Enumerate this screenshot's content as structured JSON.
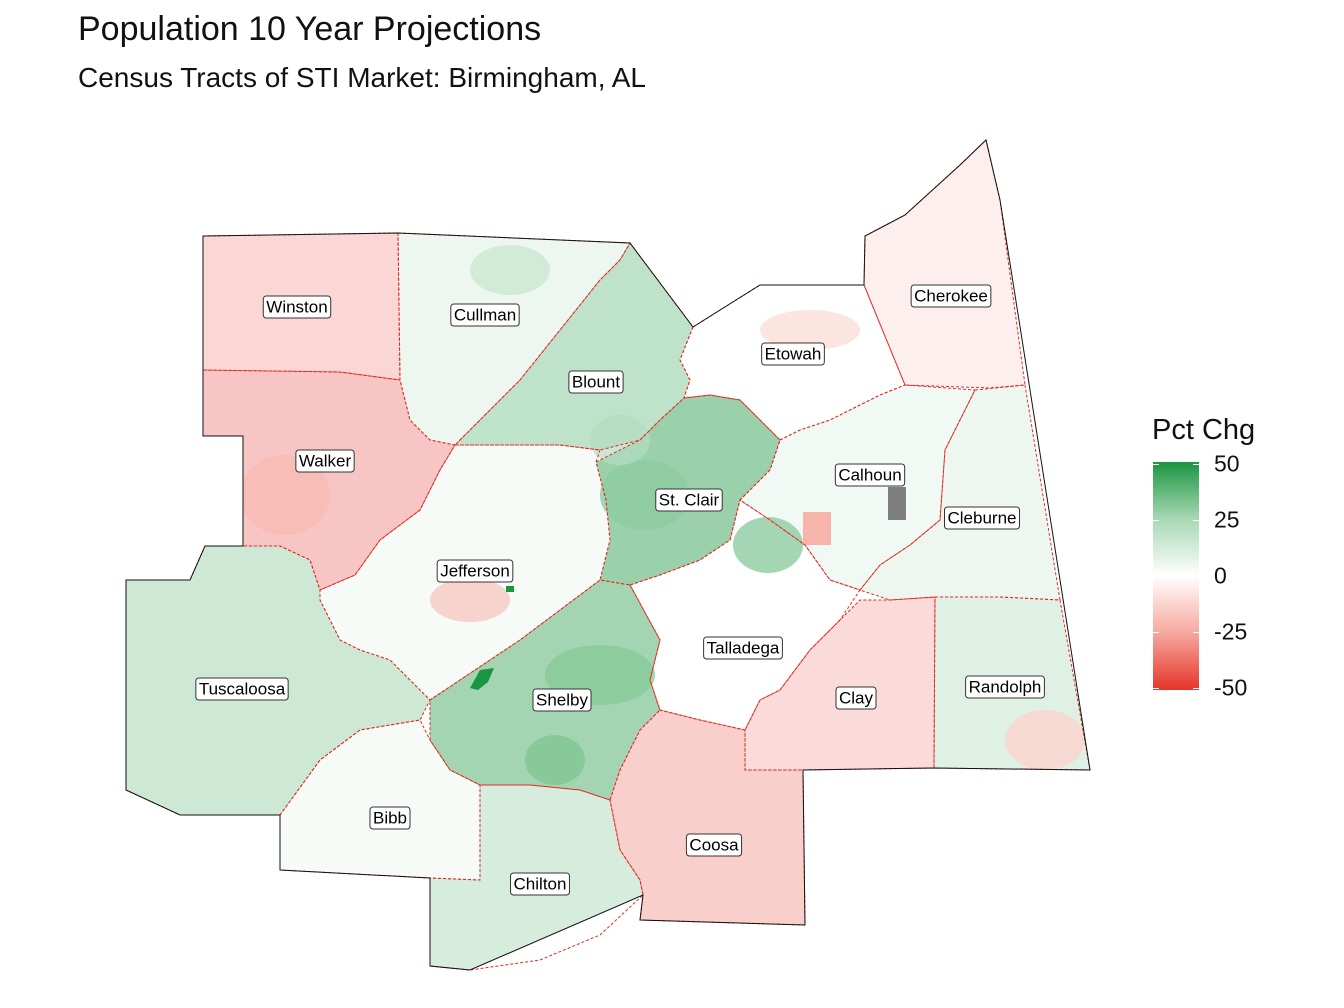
{
  "title": "Population 10 Year Projections",
  "subtitle": "Census Tracts of STI Market: Birmingham, AL",
  "legend": {
    "title": "Pct Chg",
    "ticks": [
      "50",
      "25",
      "0",
      "-25",
      "-50"
    ],
    "colors": {
      "high": "#1a9641",
      "mid": "#ffffff",
      "low": "#e4352b",
      "na": "#7f7f7f"
    }
  },
  "counties": [
    {
      "name": "Winston",
      "pct": -10
    },
    {
      "name": "Cullman",
      "pct": 4
    },
    {
      "name": "Blount",
      "pct": 14
    },
    {
      "name": "Etowah",
      "pct": 0
    },
    {
      "name": "Cherokee",
      "pct": -4
    },
    {
      "name": "Walker",
      "pct": -14
    },
    {
      "name": "St. Clair",
      "pct": 22
    },
    {
      "name": "Calhoun",
      "pct": 3
    },
    {
      "name": "Cleburne",
      "pct": 4
    },
    {
      "name": "Jefferson",
      "pct": 2
    },
    {
      "name": "Talladega",
      "pct": 0
    },
    {
      "name": "Tuscaloosa",
      "pct": 11
    },
    {
      "name": "Shelby",
      "pct": 20
    },
    {
      "name": "Clay",
      "pct": -9
    },
    {
      "name": "Randolph",
      "pct": 7
    },
    {
      "name": "Bibb",
      "pct": 2
    },
    {
      "name": "Chilton",
      "pct": 9
    },
    {
      "name": "Coosa",
      "pct": -12
    }
  ]
}
